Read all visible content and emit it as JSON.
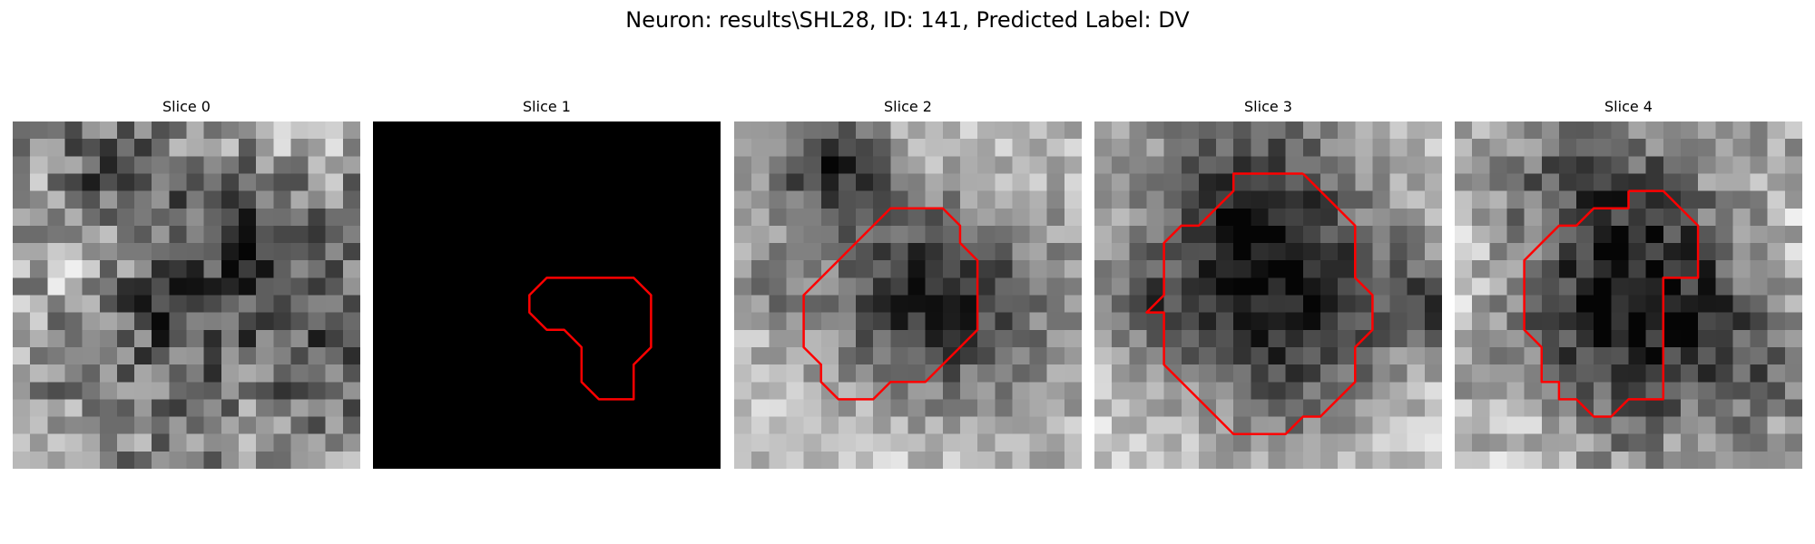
{
  "figure": {
    "title": "Neuron: results\\SHL28, ID: 141, Predicted Label: DV"
  },
  "colors": {
    "contour": "#ff0000",
    "background": "#ffffff"
  },
  "panels": [
    {
      "title": "Slice 0",
      "seed": 11,
      "mean": 0.56,
      "noise": 0.26,
      "blank": false,
      "dark": [
        [
          9,
          10,
          3.5,
          0.3
        ],
        [
          14,
          6,
          3,
          0.25
        ],
        [
          5,
          3,
          2,
          0.28
        ],
        [
          17,
          13,
          2.5,
          0.2
        ]
      ],
      "light": [
        [
          3,
          7,
          2.5,
          0.22
        ],
        [
          16,
          0,
          2,
          0.3
        ]
      ],
      "contour": []
    },
    {
      "title": "Slice 1",
      "seed": 0,
      "mean": 0,
      "noise": 0,
      "blank": true,
      "dark": [],
      "light": [],
      "contour": [
        [
          14,
          9
        ],
        [
          15,
          9
        ],
        [
          16,
          10
        ],
        [
          16,
          11
        ],
        [
          16,
          12
        ],
        [
          16,
          13
        ],
        [
          15,
          14
        ],
        [
          15,
          15
        ],
        [
          15,
          16
        ],
        [
          14,
          16
        ],
        [
          13,
          16
        ],
        [
          12,
          15
        ],
        [
          12,
          14
        ],
        [
          12,
          13
        ],
        [
          11,
          12
        ],
        [
          10,
          12
        ],
        [
          9,
          11
        ],
        [
          9,
          10
        ],
        [
          10,
          9
        ],
        [
          11,
          9
        ],
        [
          12,
          9
        ],
        [
          13,
          9
        ],
        [
          14,
          9
        ]
      ]
    },
    {
      "title": "Slice 2",
      "seed": 23,
      "mean": 0.72,
      "noise": 0.16,
      "blank": false,
      "dark": [
        [
          11,
          10,
          4.5,
          0.6
        ],
        [
          5,
          2,
          2.2,
          0.55
        ],
        [
          2,
          9,
          1.5,
          0.2
        ]
      ],
      "light": [
        [
          13,
          1,
          3,
          0.1
        ],
        [
          8,
          18,
          5,
          0.12
        ]
      ],
      "contour": [
        [
          10,
          5
        ],
        [
          12,
          5
        ],
        [
          13,
          6
        ],
        [
          13,
          7
        ],
        [
          14,
          8
        ],
        [
          14,
          9
        ],
        [
          14,
          10
        ],
        [
          14,
          11
        ],
        [
          14,
          12
        ],
        [
          13,
          13
        ],
        [
          12,
          14
        ],
        [
          11,
          15
        ],
        [
          10,
          15
        ],
        [
          9,
          15
        ],
        [
          8,
          16
        ],
        [
          7,
          16
        ],
        [
          6,
          16
        ],
        [
          5,
          15
        ],
        [
          5,
          14
        ],
        [
          4,
          13
        ],
        [
          4,
          12
        ],
        [
          4,
          11
        ],
        [
          4,
          10
        ],
        [
          5,
          9
        ],
        [
          6,
          8
        ],
        [
          7,
          7
        ],
        [
          8,
          6
        ],
        [
          9,
          5
        ],
        [
          10,
          5
        ]
      ]
    },
    {
      "title": "Slice 3",
      "seed": 37,
      "mean": 0.72,
      "noise": 0.16,
      "blank": false,
      "dark": [
        [
          10,
          10,
          5,
          0.62
        ],
        [
          8,
          3,
          3.5,
          0.35
        ],
        [
          19,
          10,
          1.8,
          0.4
        ],
        [
          2,
          10,
          1.5,
          0.3
        ]
      ],
      "light": [
        [
          2,
          17,
          4,
          0.1
        ],
        [
          19,
          17,
          3,
          0.1
        ]
      ],
      "contour": [
        [
          12,
          3
        ],
        [
          13,
          4
        ],
        [
          14,
          5
        ],
        [
          15,
          6
        ],
        [
          15,
          7
        ],
        [
          15,
          8
        ],
        [
          15,
          9
        ],
        [
          16,
          10
        ],
        [
          16,
          11
        ],
        [
          16,
          12
        ],
        [
          15,
          13
        ],
        [
          15,
          14
        ],
        [
          15,
          15
        ],
        [
          14,
          16
        ],
        [
          13,
          17
        ],
        [
          12,
          17
        ],
        [
          11,
          18
        ],
        [
          10,
          18
        ],
        [
          9,
          18
        ],
        [
          8,
          18
        ],
        [
          7,
          17
        ],
        [
          6,
          16
        ],
        [
          5,
          15
        ],
        [
          4,
          14
        ],
        [
          4,
          13
        ],
        [
          4,
          12
        ],
        [
          4,
          11
        ],
        [
          3,
          11
        ],
        [
          4,
          10
        ],
        [
          4,
          9
        ],
        [
          4,
          8
        ],
        [
          4,
          7
        ],
        [
          5,
          6
        ],
        [
          6,
          6
        ],
        [
          7,
          5
        ],
        [
          8,
          4
        ],
        [
          8,
          3
        ],
        [
          9,
          3
        ],
        [
          10,
          3
        ],
        [
          11,
          3
        ],
        [
          12,
          3
        ]
      ]
    },
    {
      "title": "Slice 4",
      "seed": 51,
      "mean": 0.66,
      "noise": 0.2,
      "blank": false,
      "dark": [
        [
          10,
          10,
          4.8,
          0.62
        ],
        [
          7,
          2,
          3,
          0.25
        ],
        [
          17,
          14,
          2,
          0.2
        ]
      ],
      "light": [
        [
          0,
          8,
          2.5,
          0.18
        ],
        [
          19,
          6,
          2.5,
          0.15
        ],
        [
          3,
          17,
          3,
          0.12
        ]
      ],
      "contour": [
        [
          10,
          4
        ],
        [
          12,
          4
        ],
        [
          13,
          5
        ],
        [
          14,
          6
        ],
        [
          14,
          7
        ],
        [
          14,
          8
        ],
        [
          14,
          9
        ],
        [
          12,
          9
        ],
        [
          12,
          10
        ],
        [
          12,
          11
        ],
        [
          12,
          12
        ],
        [
          12,
          13
        ],
        [
          12,
          14
        ],
        [
          12,
          15
        ],
        [
          12,
          16
        ],
        [
          10,
          16
        ],
        [
          9,
          17
        ],
        [
          8,
          17
        ],
        [
          7,
          16
        ],
        [
          6,
          16
        ],
        [
          6,
          15
        ],
        [
          5,
          15
        ],
        [
          5,
          14
        ],
        [
          5,
          13
        ],
        [
          4,
          12
        ],
        [
          4,
          11
        ],
        [
          4,
          10
        ],
        [
          4,
          9
        ],
        [
          4,
          8
        ],
        [
          5,
          7
        ],
        [
          6,
          6
        ],
        [
          7,
          6
        ],
        [
          8,
          5
        ],
        [
          9,
          5
        ],
        [
          10,
          5
        ],
        [
          10,
          4
        ]
      ]
    }
  ]
}
